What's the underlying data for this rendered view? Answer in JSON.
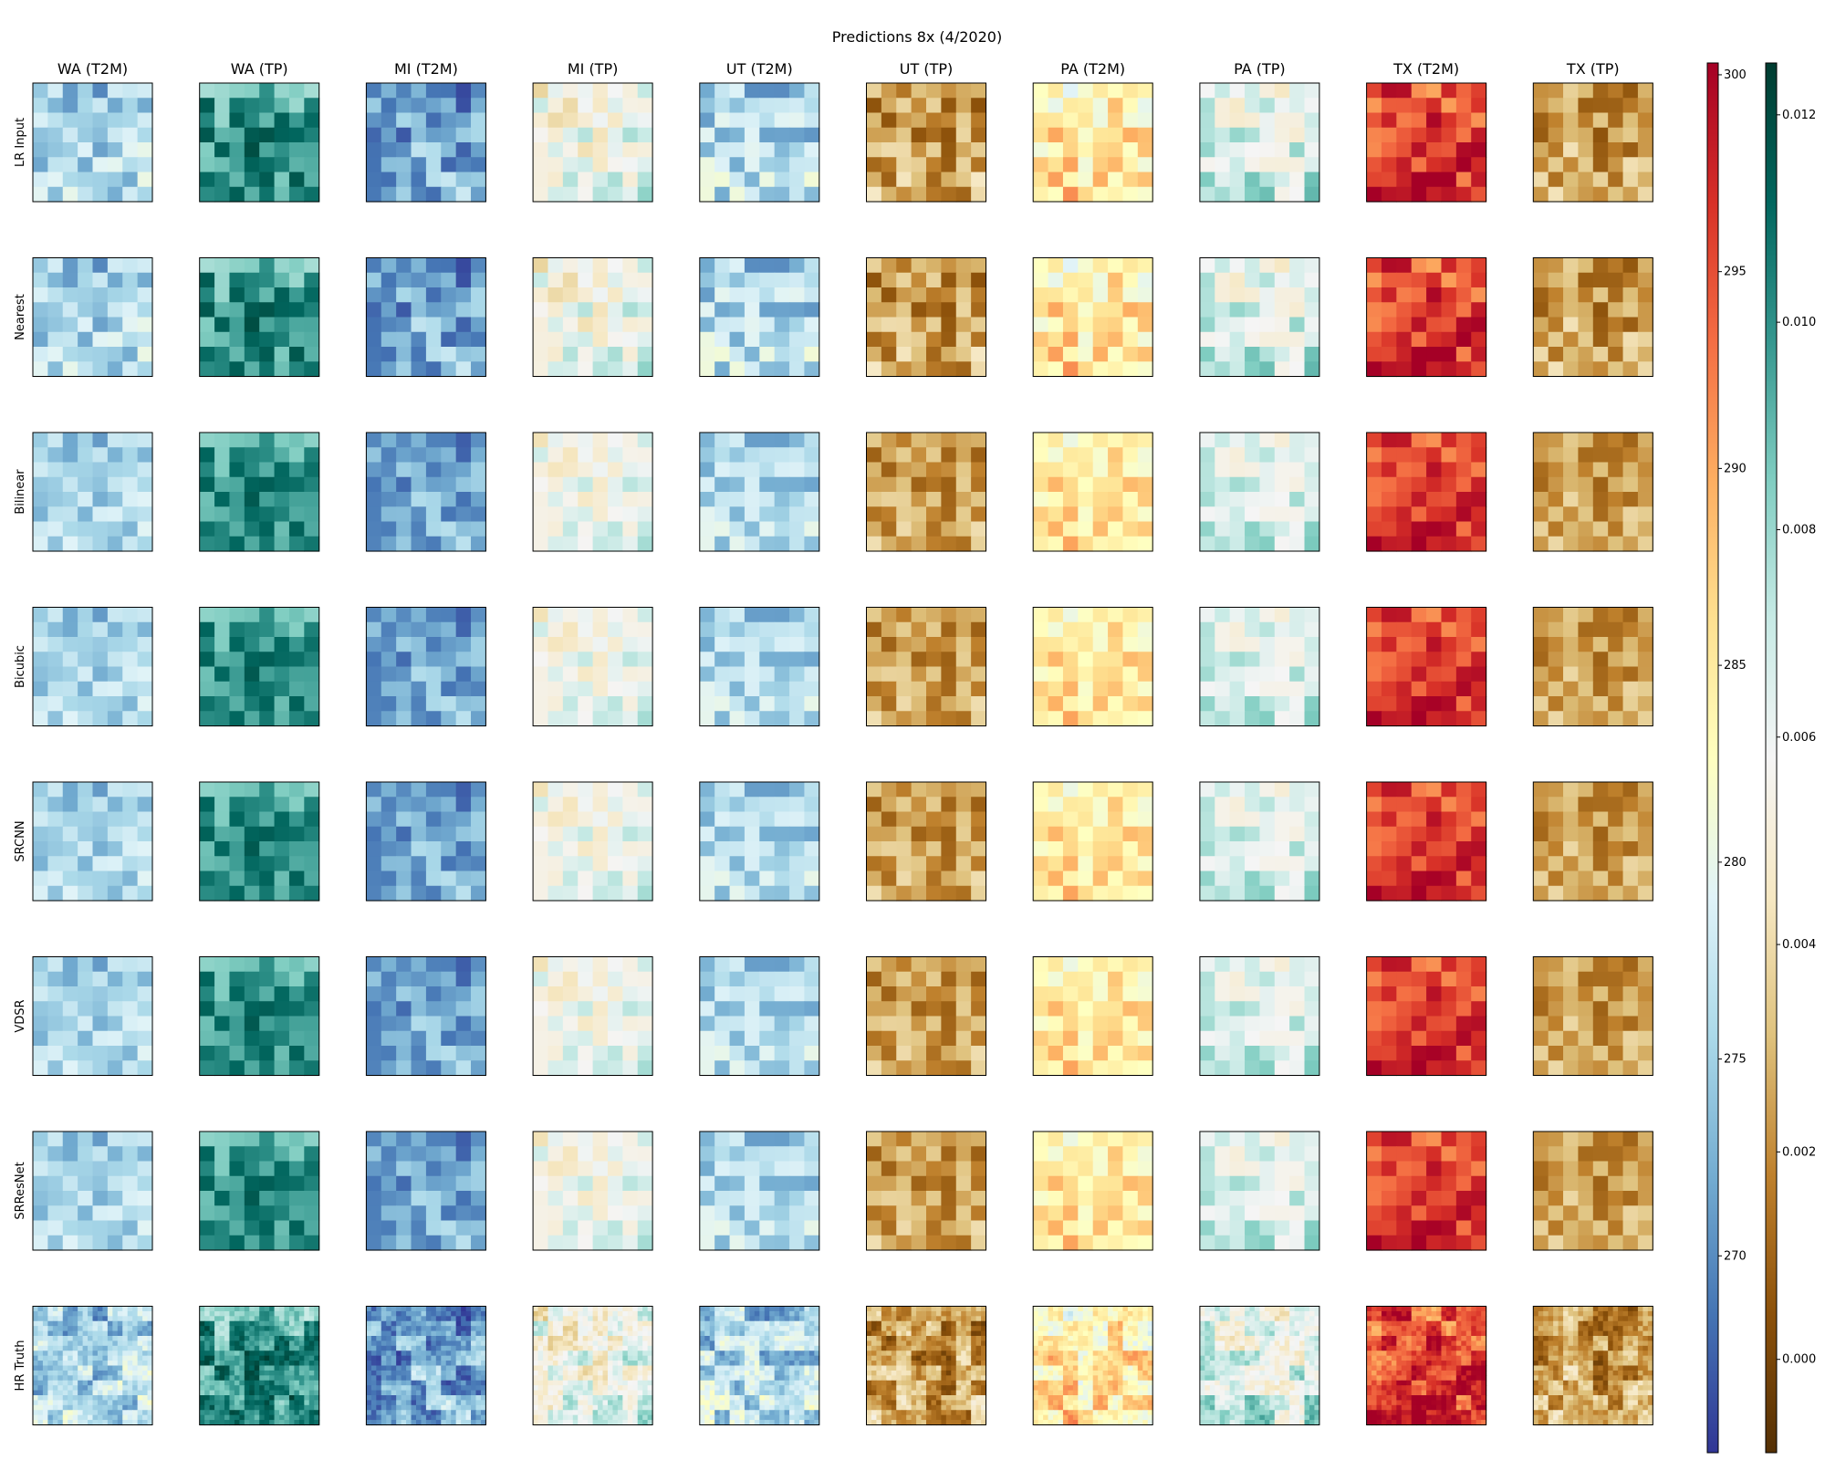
{
  "chart_data": {
    "type": "heatmap",
    "title": "Predictions 8x (4/2020)",
    "columns": [
      "WA (T2M)",
      "WA (TP)",
      "MI (T2M)",
      "MI (TP)",
      "UT (T2M)",
      "UT (TP)",
      "PA (T2M)",
      "PA (TP)",
      "TX (T2M)",
      "TX (TP)"
    ],
    "rows": [
      "LR Input",
      "Nearest",
      "Bilinear",
      "Bicubic",
      "SRCNN",
      "VDSR",
      "SRResNet",
      "HR Truth"
    ],
    "column_variable": [
      "T2M",
      "TP",
      "T2M",
      "TP",
      "T2M",
      "TP",
      "T2M",
      "TP",
      "T2M",
      "TP"
    ],
    "panel_level": [
      0.3,
      0.82,
      0.2,
      0.52,
      0.3,
      0.25,
      0.58,
      0.58,
      0.88,
      0.25
    ],
    "ticks_shown": false,
    "colorbars": [
      {
        "variable": "T2M",
        "colormap": "RdYlBu_r",
        "range": [
          265,
          300.3
        ],
        "ticks": [
          270,
          275,
          280,
          285,
          290,
          295,
          300
        ],
        "stops": [
          "#313695",
          "#4575b4",
          "#74add1",
          "#abd9e9",
          "#e0f3f8",
          "#ffffbf",
          "#fee090",
          "#fdae61",
          "#f46d43",
          "#d73027",
          "#a50026"
        ]
      },
      {
        "variable": "TP",
        "colormap": "BrBG",
        "range": [
          -0.0009,
          0.0125
        ],
        "ticks": [
          0.0,
          0.002,
          0.004,
          0.006,
          0.008,
          0.01,
          0.012
        ],
        "tick_labels": [
          "0.000",
          "0.002",
          "0.004",
          "0.006",
          "0.008",
          "0.010",
          "0.012"
        ],
        "stops": [
          "#543005",
          "#8c510a",
          "#bf812d",
          "#dfc27d",
          "#f6e8c3",
          "#f5f5f5",
          "#c7eae5",
          "#80cdc1",
          "#35978f",
          "#01665e",
          "#003c30"
        ]
      }
    ]
  }
}
